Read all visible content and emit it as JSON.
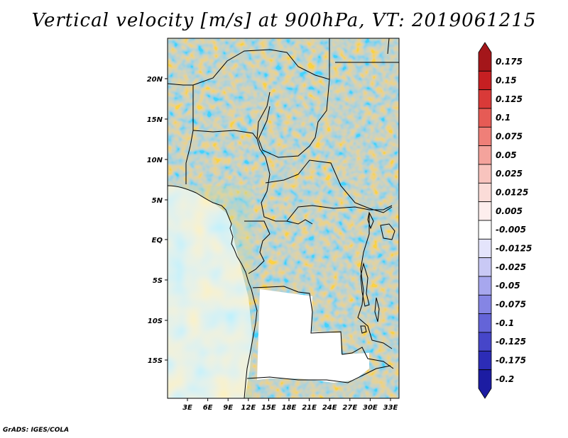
{
  "title": "Vertical velocity [m/s] at 900hPa, VT: 2019061215",
  "credit": "GrADS: IGES/COLA",
  "map": {
    "lat_labels": [
      "20N",
      "15N",
      "10N",
      "5N",
      "EQ",
      "5S",
      "10S",
      "15S"
    ],
    "lon_labels": [
      "3E",
      "6E",
      "9E",
      "12E",
      "15E",
      "18E",
      "21E",
      "24E",
      "27E",
      "30E",
      "33E"
    ]
  },
  "colorbar": {
    "levels": [
      "0.175",
      "0.15",
      "0.125",
      "0.1",
      "0.075",
      "0.05",
      "0.025",
      "0.0125",
      "0.005",
      "-0.005",
      "-0.0125",
      "-0.025",
      "-0.05",
      "-0.075",
      "-0.1",
      "-0.125",
      "-0.175",
      "-0.2"
    ],
    "colors": [
      "#a4161a",
      "#c61f22",
      "#d93a38",
      "#e65b55",
      "#ef7f78",
      "#f4a39c",
      "#f8c4be",
      "#fbdcd8",
      "#fdeeed",
      "#ffffff",
      "#e4e4fb",
      "#c9c9f5",
      "#a7a7ee",
      "#8585e4",
      "#6464d8",
      "#4646c9",
      "#2c2cb7",
      "#1c1ca2"
    ]
  }
}
